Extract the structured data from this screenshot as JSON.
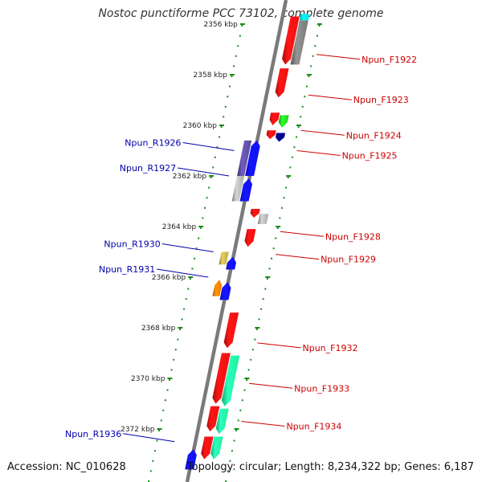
{
  "title": "Nostoc punctiforme PCC 73102, complete genome",
  "accession": "Accession: NC_010628",
  "topology": "Topology: circular; Length: 8,234,322 bp; Genes: 6,187",
  "colors": {
    "backbone": "#7a7a7a",
    "tick": "#1a8a1a",
    "right_label": "#cc0000",
    "left_label": "#0000aa",
    "gene_red": "#ee1111",
    "gene_blue": "#1111ee",
    "gene_grey": "#777777",
    "gene_green": "#22cc22",
    "gene_navy": "#000080",
    "gene_teal": "#22ee99",
    "gene_cyan": "#00dddd",
    "gene_olive": "#bba84a",
    "gene_orange": "#ee7700",
    "gene_purple": "#5a4a99",
    "gene_silver": "#aaaaaa"
  },
  "kbp_labels": [
    {
      "kbp": 2356,
      "text": "2356 kbp"
    },
    {
      "kbp": 2358,
      "text": "2358 kbp"
    },
    {
      "kbp": 2360,
      "text": "2360 kbp"
    },
    {
      "kbp": 2362,
      "text": "2362 kbp"
    },
    {
      "kbp": 2364,
      "text": "2364 kbp"
    },
    {
      "kbp": 2366,
      "text": "2366 kbp"
    },
    {
      "kbp": 2368,
      "text": "2368 kbp"
    },
    {
      "kbp": 2370,
      "text": "2370 kbp"
    },
    {
      "kbp": 2372,
      "text": "2372 kbp"
    }
  ],
  "right_labels": [
    {
      "text": "Npun_F1922",
      "kbp": 2357.2
    },
    {
      "text": "Npun_F1923",
      "kbp": 2358.8
    },
    {
      "text": "Npun_F1924",
      "kbp": 2360.2
    },
    {
      "text": "Npun_F1925",
      "kbp": 2361.0
    },
    {
      "text": "Npun_F1928",
      "kbp": 2364.2
    },
    {
      "text": "Npun_F1929",
      "kbp": 2365.1
    },
    {
      "text": "Npun_F1932",
      "kbp": 2368.6
    },
    {
      "text": "Npun_F1933",
      "kbp": 2370.2
    },
    {
      "text": "Npun_F1934",
      "kbp": 2371.7
    }
  ],
  "left_labels": [
    {
      "text": "Npun_R1926",
      "kbp": 2361.0
    },
    {
      "text": "Npun_R1927",
      "kbp": 2362.0
    },
    {
      "text": "Npun_R1930",
      "kbp": 2365.0
    },
    {
      "text": "Npun_R1931",
      "kbp": 2366.0
    },
    {
      "text": "Npun_R1936",
      "kbp": 2372.5
    }
  ],
  "genes": [
    {
      "track": "f2",
      "start": 2355.85,
      "end": 2357.6,
      "color": "gene_grey",
      "arrow": false
    },
    {
      "track": "f2",
      "start": 2355.6,
      "end": 2355.85,
      "color": "gene_cyan",
      "arrow": false
    },
    {
      "track": "f1",
      "start": 2355.7,
      "end": 2357.6,
      "color": "gene_red",
      "arrow": true
    },
    {
      "track": "f1",
      "start": 2357.75,
      "end": 2358.9,
      "color": "gene_red",
      "arrow": true
    },
    {
      "track": "f1",
      "start": 2359.5,
      "end": 2360.0,
      "color": "gene_red",
      "arrow": true
    },
    {
      "track": "f2",
      "start": 2359.6,
      "end": 2360.1,
      "color": "gene_green",
      "arrow": true
    },
    {
      "track": "f1",
      "start": 2360.2,
      "end": 2360.55,
      "color": "gene_red",
      "arrow": true
    },
    {
      "track": "f2",
      "start": 2360.3,
      "end": 2360.65,
      "color": "gene_navy",
      "arrow": true
    },
    {
      "track": "r1",
      "start": 2360.6,
      "end": 2362.0,
      "color": "gene_blue",
      "arrow": true
    },
    {
      "track": "r2",
      "start": 2360.6,
      "end": 2362.0,
      "color": "gene_purple",
      "arrow": false
    },
    {
      "track": "r1",
      "start": 2362.1,
      "end": 2363.0,
      "color": "gene_blue",
      "arrow": true
    },
    {
      "track": "r2",
      "start": 2362.0,
      "end": 2363.0,
      "color": "gene_silver",
      "arrow": false
    },
    {
      "track": "f1",
      "start": 2363.3,
      "end": 2363.65,
      "color": "gene_red",
      "arrow": true
    },
    {
      "track": "f2",
      "start": 2363.5,
      "end": 2363.9,
      "color": "gene_silver",
      "arrow": false
    },
    {
      "track": "f1",
      "start": 2364.1,
      "end": 2364.8,
      "color": "gene_red",
      "arrow": true
    },
    {
      "track": "r2",
      "start": 2365.0,
      "end": 2365.5,
      "color": "gene_olive",
      "arrow": false
    },
    {
      "track": "r1",
      "start": 2365.2,
      "end": 2365.7,
      "color": "gene_blue",
      "arrow": true
    },
    {
      "track": "r2",
      "start": 2366.1,
      "end": 2366.75,
      "color": "gene_orange",
      "arrow": true
    },
    {
      "track": "r1",
      "start": 2366.2,
      "end": 2366.9,
      "color": "gene_blue",
      "arrow": true
    },
    {
      "track": "f1",
      "start": 2367.4,
      "end": 2368.8,
      "color": "gene_red",
      "arrow": true
    },
    {
      "track": "f1",
      "start": 2369.0,
      "end": 2371.0,
      "color": "gene_red",
      "arrow": true
    },
    {
      "track": "f2",
      "start": 2369.1,
      "end": 2371.1,
      "color": "gene_teal",
      "arrow": true
    },
    {
      "track": "f1",
      "start": 2371.1,
      "end": 2372.1,
      "color": "gene_red",
      "arrow": true
    },
    {
      "track": "f2",
      "start": 2371.2,
      "end": 2372.2,
      "color": "gene_teal",
      "arrow": true
    },
    {
      "track": "f1",
      "start": 2372.3,
      "end": 2373.2,
      "color": "gene_red",
      "arrow": true
    },
    {
      "track": "f2",
      "start": 2372.3,
      "end": 2373.2,
      "color": "gene_teal",
      "arrow": true
    },
    {
      "track": "r1",
      "start": 2372.8,
      "end": 2373.6,
      "color": "gene_blue",
      "arrow": true
    }
  ]
}
